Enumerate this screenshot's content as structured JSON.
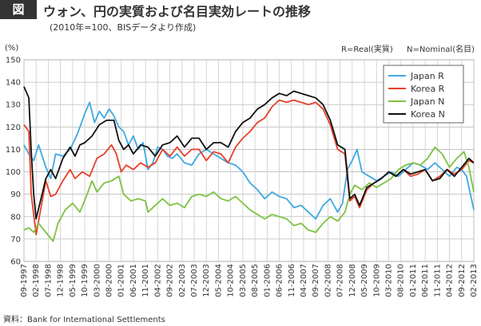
{
  "header": {
    "figure_label": "図",
    "title": "ウォン、円の実質および名目実効レートの推移",
    "subtitle": "(2010年=100、BISデータより作成)"
  },
  "unit_label": "(%)",
  "notes": [
    "R=Real(実質)",
    "N=Nominal(名目)"
  ],
  "source": "資料：Bank for International Settlements",
  "chart_data": {
    "type": "line",
    "ylim": [
      60,
      150
    ],
    "yticks": [
      60,
      70,
      80,
      90,
      100,
      110,
      120,
      130,
      140,
      150
    ],
    "grid": true,
    "legend_position": "top-right",
    "x_ticks": [
      "09-1997",
      "02-1998",
      "07-1998",
      "12-1998",
      "05-1999",
      "10-1999",
      "03-2000",
      "08-2000",
      "01-2001",
      "06-2001",
      "11-2001",
      "04-2002",
      "09-2002",
      "02-2003",
      "07-2003",
      "12-2003",
      "05-2004",
      "10-2004",
      "03-2005",
      "08-2005",
      "01-2006",
      "06-2006",
      "11-2006",
      "04-2007",
      "09-2007",
      "02-2008",
      "07-2008",
      "12-2008",
      "05-2009",
      "10-2009",
      "03-2010",
      "08-2010",
      "01-2011",
      "06-2011",
      "11-2011",
      "04-2012",
      "09-2012",
      "02-2013"
    ],
    "series": [
      {
        "name": "Japan R",
        "color": "#3fa9e0",
        "points": [
          [
            "1997-09",
            112
          ],
          [
            "1997-11",
            108
          ],
          [
            "1998-01",
            105
          ],
          [
            "1998-03",
            112
          ],
          [
            "1998-06",
            102
          ],
          [
            "1998-08",
            97
          ],
          [
            "1998-10",
            108
          ],
          [
            "1999-01",
            107
          ],
          [
            "1999-04",
            110
          ],
          [
            "1999-07",
            117
          ],
          [
            "1999-10",
            126
          ],
          [
            "1999-12",
            131
          ],
          [
            "2000-02",
            122
          ],
          [
            "2000-04",
            127
          ],
          [
            "2000-06",
            124
          ],
          [
            "2000-08",
            128
          ],
          [
            "2000-10",
            125
          ],
          [
            "2000-12",
            120
          ],
          [
            "2001-02",
            118
          ],
          [
            "2001-04",
            112
          ],
          [
            "2001-06",
            116
          ],
          [
            "2001-08",
            110
          ],
          [
            "2001-10",
            113
          ],
          [
            "2001-12",
            101
          ],
          [
            "2002-02",
            104
          ],
          [
            "2002-04",
            111
          ],
          [
            "2002-06",
            110
          ],
          [
            "2002-08",
            107
          ],
          [
            "2002-10",
            106
          ],
          [
            "2002-12",
            108
          ],
          [
            "2003-03",
            104
          ],
          [
            "2003-06",
            103
          ],
          [
            "2003-09",
            108
          ],
          [
            "2003-12",
            110
          ],
          [
            "2004-03",
            108
          ],
          [
            "2004-06",
            106
          ],
          [
            "2004-09",
            104
          ],
          [
            "2004-12",
            103
          ],
          [
            "2005-03",
            100
          ],
          [
            "2005-06",
            95
          ],
          [
            "2005-09",
            92
          ],
          [
            "2005-12",
            88
          ],
          [
            "2006-03",
            91
          ],
          [
            "2006-06",
            89
          ],
          [
            "2006-09",
            88
          ],
          [
            "2006-12",
            84
          ],
          [
            "2007-03",
            85
          ],
          [
            "2007-06",
            82
          ],
          [
            "2007-09",
            79
          ],
          [
            "2007-12",
            85
          ],
          [
            "2008-03",
            88
          ],
          [
            "2008-06",
            82
          ],
          [
            "2008-08",
            86
          ],
          [
            "2008-10",
            101
          ],
          [
            "2008-12",
            105
          ],
          [
            "2009-02",
            110
          ],
          [
            "2009-04",
            100
          ],
          [
            "2009-07",
            98
          ],
          [
            "2009-10",
            96
          ],
          [
            "2010-01",
            98
          ],
          [
            "2010-04",
            100
          ],
          [
            "2010-07",
            98
          ],
          [
            "2010-10",
            101
          ],
          [
            "2011-01",
            104
          ],
          [
            "2011-04",
            103
          ],
          [
            "2011-07",
            101
          ],
          [
            "2011-10",
            104
          ],
          [
            "2012-01",
            101
          ],
          [
            "2012-04",
            98
          ],
          [
            "2012-07",
            102
          ],
          [
            "2012-09",
            101
          ],
          [
            "2012-11",
            98
          ],
          [
            "2013-01",
            88
          ],
          [
            "2013-02",
            83
          ]
        ]
      },
      {
        "name": "Korea R",
        "color": "#e6402a",
        "points": [
          [
            "1997-09",
            121
          ],
          [
            "1997-11",
            118
          ],
          [
            "1997-12",
            90
          ],
          [
            "1998-02",
            72
          ],
          [
            "1998-04",
            84
          ],
          [
            "1998-06",
            96
          ],
          [
            "1998-08",
            89
          ],
          [
            "1998-10",
            90
          ],
          [
            "1999-01",
            96
          ],
          [
            "1999-04",
            101
          ],
          [
            "1999-06",
            97
          ],
          [
            "1999-09",
            100
          ],
          [
            "1999-12",
            98
          ],
          [
            "2000-03",
            106
          ],
          [
            "2000-06",
            108
          ],
          [
            "2000-09",
            112
          ],
          [
            "2000-11",
            108
          ],
          [
            "2001-01",
            100
          ],
          [
            "2001-03",
            103
          ],
          [
            "2001-06",
            101
          ],
          [
            "2001-09",
            104
          ],
          [
            "2001-12",
            102
          ],
          [
            "2002-03",
            104
          ],
          [
            "2002-06",
            110
          ],
          [
            "2002-09",
            107
          ],
          [
            "2002-12",
            111
          ],
          [
            "2003-03",
            107
          ],
          [
            "2003-06",
            110
          ],
          [
            "2003-09",
            110
          ],
          [
            "2003-12",
            105
          ],
          [
            "2004-03",
            109
          ],
          [
            "2004-06",
            108
          ],
          [
            "2004-09",
            104
          ],
          [
            "2004-12",
            111
          ],
          [
            "2005-03",
            115
          ],
          [
            "2005-06",
            118
          ],
          [
            "2005-09",
            122
          ],
          [
            "2005-12",
            124
          ],
          [
            "2006-03",
            129
          ],
          [
            "2006-06",
            132
          ],
          [
            "2006-09",
            131
          ],
          [
            "2006-12",
            132
          ],
          [
            "2007-03",
            131
          ],
          [
            "2007-06",
            130
          ],
          [
            "2007-09",
            131
          ],
          [
            "2007-12",
            128
          ],
          [
            "2008-03",
            121
          ],
          [
            "2008-06",
            110
          ],
          [
            "2008-09",
            108
          ],
          [
            "2008-11",
            87
          ],
          [
            "2009-01",
            89
          ],
          [
            "2009-03",
            84
          ],
          [
            "2009-06",
            92
          ],
          [
            "2009-09",
            95
          ],
          [
            "2009-12",
            97
          ],
          [
            "2010-03",
            100
          ],
          [
            "2010-06",
            98
          ],
          [
            "2010-09",
            101
          ],
          [
            "2010-12",
            98
          ],
          [
            "2011-03",
            99
          ],
          [
            "2011-06",
            101
          ],
          [
            "2011-09",
            96
          ],
          [
            "2011-12",
            98
          ],
          [
            "2012-03",
            101
          ],
          [
            "2012-06",
            99
          ],
          [
            "2012-09",
            101
          ],
          [
            "2012-12",
            105
          ],
          [
            "2013-02",
            104
          ]
        ]
      },
      {
        "name": "Japan N",
        "color": "#7dc242",
        "points": [
          [
            "1997-09",
            74
          ],
          [
            "1997-11",
            75
          ],
          [
            "1998-01",
            73
          ],
          [
            "1998-03",
            77
          ],
          [
            "1998-06",
            73
          ],
          [
            "1998-09",
            69
          ],
          [
            "1998-11",
            77
          ],
          [
            "1999-02",
            83
          ],
          [
            "1999-05",
            86
          ],
          [
            "1999-08",
            82
          ],
          [
            "1999-11",
            90
          ],
          [
            "2000-01",
            96
          ],
          [
            "2000-03",
            91
          ],
          [
            "2000-06",
            95
          ],
          [
            "2000-09",
            96
          ],
          [
            "2000-12",
            98
          ],
          [
            "2001-02",
            90
          ],
          [
            "2001-05",
            87
          ],
          [
            "2001-08",
            88
          ],
          [
            "2001-11",
            87
          ],
          [
            "2001-12",
            82
          ],
          [
            "2002-03",
            85
          ],
          [
            "2002-06",
            88
          ],
          [
            "2002-09",
            85
          ],
          [
            "2002-12",
            86
          ],
          [
            "2003-03",
            84
          ],
          [
            "2003-06",
            89
          ],
          [
            "2003-09",
            90
          ],
          [
            "2003-12",
            89
          ],
          [
            "2004-03",
            91
          ],
          [
            "2004-06",
            88
          ],
          [
            "2004-09",
            87
          ],
          [
            "2004-12",
            89
          ],
          [
            "2005-03",
            86
          ],
          [
            "2005-06",
            83
          ],
          [
            "2005-09",
            81
          ],
          [
            "2005-12",
            79
          ],
          [
            "2006-03",
            81
          ],
          [
            "2006-06",
            80
          ],
          [
            "2006-09",
            79
          ],
          [
            "2006-12",
            76
          ],
          [
            "2007-03",
            77
          ],
          [
            "2007-06",
            74
          ],
          [
            "2007-09",
            73
          ],
          [
            "2007-12",
            77
          ],
          [
            "2008-03",
            80
          ],
          [
            "2008-06",
            78
          ],
          [
            "2008-09",
            82
          ],
          [
            "2008-11",
            90
          ],
          [
            "2009-01",
            94
          ],
          [
            "2009-04",
            92
          ],
          [
            "2009-07",
            95
          ],
          [
            "2009-10",
            93
          ],
          [
            "2010-01",
            95
          ],
          [
            "2010-04",
            97
          ],
          [
            "2010-07",
            101
          ],
          [
            "2010-10",
            103
          ],
          [
            "2011-01",
            104
          ],
          [
            "2011-04",
            103
          ],
          [
            "2011-07",
            106
          ],
          [
            "2011-10",
            111
          ],
          [
            "2012-01",
            108
          ],
          [
            "2012-04",
            102
          ],
          [
            "2012-07",
            106
          ],
          [
            "2012-10",
            109
          ],
          [
            "2012-12",
            102
          ],
          [
            "2013-02",
            91
          ]
        ]
      },
      {
        "name": "Korea N",
        "color": "#111111",
        "points": [
          [
            "1997-09",
            138
          ],
          [
            "1997-11",
            133
          ],
          [
            "1997-12",
            109
          ],
          [
            "1998-01",
            90
          ],
          [
            "1998-02",
            79
          ],
          [
            "1998-04",
            88
          ],
          [
            "1998-06",
            97
          ],
          [
            "1998-08",
            101
          ],
          [
            "1998-10",
            97
          ],
          [
            "1999-01",
            106
          ],
          [
            "1999-04",
            111
          ],
          [
            "1999-06",
            107
          ],
          [
            "1999-08",
            112
          ],
          [
            "1999-10",
            113
          ],
          [
            "2000-01",
            116
          ],
          [
            "2000-04",
            121
          ],
          [
            "2000-07",
            123
          ],
          [
            "2000-10",
            123
          ],
          [
            "2000-12",
            114
          ],
          [
            "2001-02",
            110
          ],
          [
            "2001-04",
            112
          ],
          [
            "2001-06",
            108
          ],
          [
            "2001-09",
            112
          ],
          [
            "2001-12",
            111
          ],
          [
            "2002-03",
            107
          ],
          [
            "2002-06",
            112
          ],
          [
            "2002-09",
            113
          ],
          [
            "2002-12",
            116
          ],
          [
            "2003-03",
            111
          ],
          [
            "2003-06",
            115
          ],
          [
            "2003-09",
            115
          ],
          [
            "2003-12",
            110
          ],
          [
            "2004-03",
            113
          ],
          [
            "2004-06",
            113
          ],
          [
            "2004-09",
            111
          ],
          [
            "2004-12",
            118
          ],
          [
            "2005-03",
            122
          ],
          [
            "2005-06",
            124
          ],
          [
            "2005-09",
            128
          ],
          [
            "2005-12",
            130
          ],
          [
            "2006-03",
            133
          ],
          [
            "2006-06",
            135
          ],
          [
            "2006-09",
            134
          ],
          [
            "2006-12",
            136
          ],
          [
            "2007-03",
            135
          ],
          [
            "2007-06",
            134
          ],
          [
            "2007-09",
            133
          ],
          [
            "2007-12",
            130
          ],
          [
            "2008-03",
            123
          ],
          [
            "2008-06",
            112
          ],
          [
            "2008-09",
            110
          ],
          [
            "2008-11",
            88
          ],
          [
            "2009-01",
            90
          ],
          [
            "2009-03",
            85
          ],
          [
            "2009-06",
            93
          ],
          [
            "2009-09",
            95
          ],
          [
            "2009-12",
            97
          ],
          [
            "2010-03",
            100
          ],
          [
            "2010-06",
            98
          ],
          [
            "2010-09",
            101
          ],
          [
            "2010-12",
            99
          ],
          [
            "2011-03",
            100
          ],
          [
            "2011-06",
            101
          ],
          [
            "2011-09",
            96
          ],
          [
            "2011-12",
            97
          ],
          [
            "2012-03",
            101
          ],
          [
            "2012-06",
            98
          ],
          [
            "2012-09",
            102
          ],
          [
            "2012-12",
            106
          ],
          [
            "2013-02",
            104
          ]
        ]
      }
    ]
  }
}
